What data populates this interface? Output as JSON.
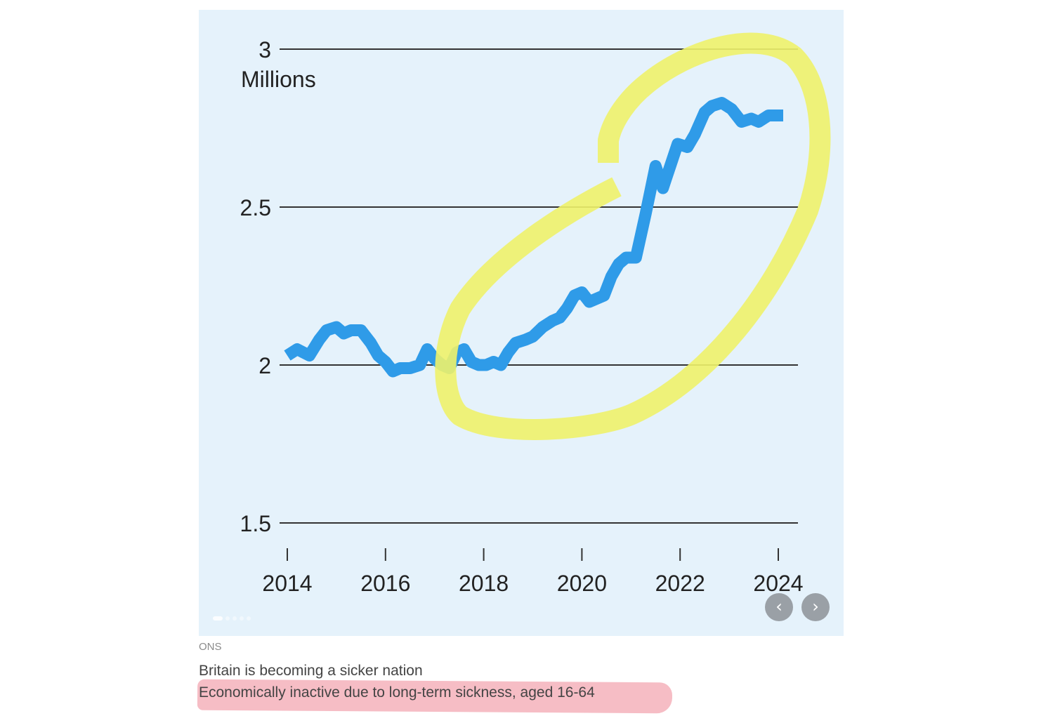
{
  "chart_data": {
    "type": "line",
    "title": "",
    "xlabel": "",
    "ylabel": "Millions",
    "xlim": [
      2014,
      2024.3
    ],
    "ylim": [
      1.5,
      3
    ],
    "grid": true,
    "legend": "none",
    "x_ticks": [
      "2014",
      "2016",
      "2018",
      "2020",
      "2022",
      "2024"
    ],
    "x_tick_values": [
      2014,
      2016,
      2018,
      2020,
      2022,
      2024
    ],
    "y_ticks": [
      "1.5",
      "2",
      "2.5",
      "3"
    ],
    "y_tick_values": [
      1.5,
      2,
      2.5,
      3
    ],
    "series": [
      {
        "name": "",
        "color": "#2f9be8",
        "x": [
          2014.0,
          2014.2,
          2014.45,
          2014.65,
          2014.8,
          2015.0,
          2015.15,
          2015.3,
          2015.5,
          2015.7,
          2015.85,
          2016.0,
          2016.15,
          2016.3,
          2016.5,
          2016.7,
          2016.85,
          2017.0,
          2017.15,
          2017.3,
          2017.45,
          2017.6,
          2017.75,
          2017.9,
          2018.05,
          2018.2,
          2018.35,
          2018.5,
          2018.65,
          2018.85,
          2019.0,
          2019.2,
          2019.4,
          2019.55,
          2019.7,
          2019.85,
          2020.0,
          2020.15,
          2020.3,
          2020.45,
          2020.6,
          2020.75,
          2020.9,
          2021.1,
          2021.3,
          2021.5,
          2021.65,
          2021.8,
          2021.95,
          2022.15,
          2022.3,
          2022.5,
          2022.65,
          2022.85,
          2023.05,
          2023.25,
          2023.45,
          2023.6,
          2023.8,
          2023.95,
          2024.1
        ],
        "values": [
          2.03,
          2.05,
          2.03,
          2.08,
          2.11,
          2.12,
          2.1,
          2.11,
          2.11,
          2.07,
          2.03,
          2.01,
          1.98,
          1.99,
          1.99,
          2.0,
          2.05,
          2.02,
          2.0,
          1.99,
          2.04,
          2.05,
          2.01,
          2.0,
          2.0,
          2.01,
          2.0,
          2.04,
          2.07,
          2.08,
          2.09,
          2.12,
          2.14,
          2.15,
          2.18,
          2.22,
          2.23,
          2.2,
          2.21,
          2.22,
          2.28,
          2.32,
          2.34,
          2.34,
          2.48,
          2.63,
          2.56,
          2.63,
          2.7,
          2.69,
          2.73,
          2.8,
          2.82,
          2.83,
          2.81,
          2.77,
          2.78,
          2.77,
          2.79,
          2.79,
          2.79
        ]
      }
    ]
  },
  "ui": {
    "prev_icon": "‹",
    "next_icon": "›"
  },
  "caption": {
    "source": "ONS",
    "title": "Britain is becoming a sicker nation",
    "subtitle": "Economically inactive due to long-term sickness, aged 16-64"
  },
  "colors": {
    "panel_background": "#e5f2fb",
    "line": "#2f9be8",
    "gridline": "#333333",
    "highlight_circle": "#eef26a",
    "caption_highlight": "#f3a7b1"
  }
}
